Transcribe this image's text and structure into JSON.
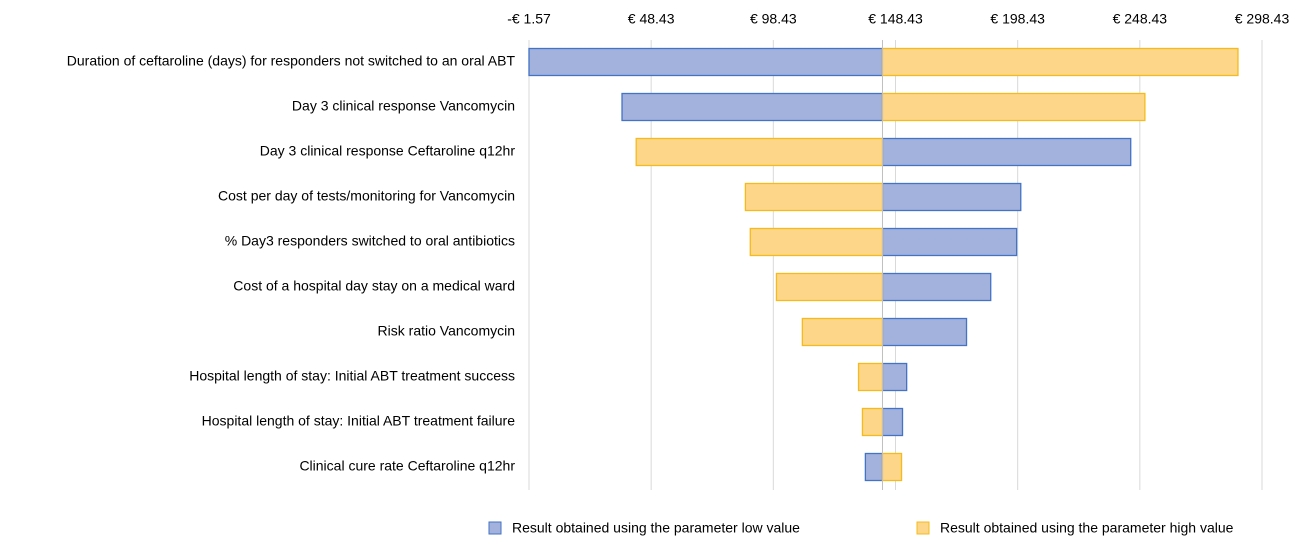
{
  "chart_data": {
    "type": "tornado",
    "categories": [
      "Duration of ceftaroline (days) for responders not switched to an oral ABT",
      "Day 3 clinical response  Vancomycin",
      "Day 3 clinical response Ceftaroline q12hr",
      "Cost per day of tests/monitoring for Vancomycin",
      "% Day3 responders switched to oral antibiotics",
      "Cost of a hospital day stay on a medical ward",
      "Risk ratio Vancomycin",
      "Hospital length of stay: Initial ABT treatment success",
      "Hospital length of stay: Initial ABT treatment failure",
      "Clinical cure rate Ceftaroline q12hr"
    ],
    "base_value": 143.1,
    "series": [
      {
        "name": "Result obtained using the parameter low value",
        "color": "#a2b2dd",
        "stroke": "#4472c4",
        "values": [
          -1.57,
          36.5,
          244.7,
          199.7,
          198.0,
          187.4,
          177.5,
          153.0,
          151.3,
          136.1
        ]
      },
      {
        "name": "Result obtained using the parameter high value",
        "color": "#fdd68a",
        "stroke": "#f5bb1c",
        "values": [
          288.6,
          250.5,
          42.3,
          87.0,
          89.0,
          99.7,
          110.3,
          133.3,
          134.9,
          150.9
        ]
      }
    ],
    "xlim": [
      -1.57,
      298.43
    ],
    "xticks": [
      {
        "value": -1.57,
        "label": "-€ 1.57"
      },
      {
        "value": 48.43,
        "label": "€ 48.43"
      },
      {
        "value": 98.43,
        "label": "€ 98.43"
      },
      {
        "value": 148.43,
        "label": "€ 148.43"
      },
      {
        "value": 198.43,
        "label": "€ 198.43"
      },
      {
        "value": 248.43,
        "label": "€ 248.43"
      },
      {
        "value": 298.43,
        "label": "€ 298.43"
      }
    ],
    "grid": true
  }
}
